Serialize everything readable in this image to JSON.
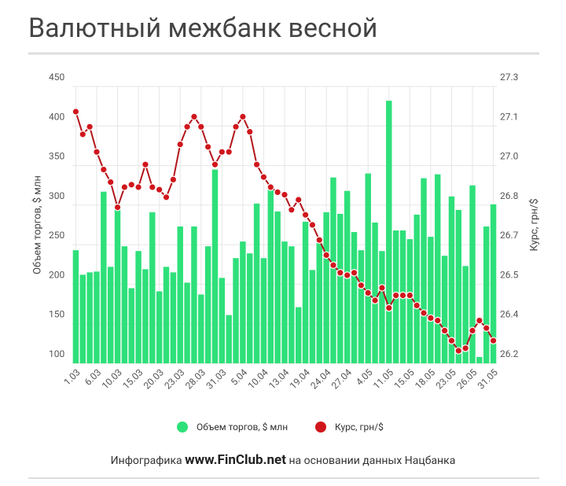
{
  "chart_data": {
    "type": "bar-line",
    "title": "Валютный межбанк весной",
    "y_label": "Объем торгов, $ млн",
    "y2_label": "Курс, грн/$",
    "footer": [
      "Инфографика",
      "www.FinClub.net",
      "на основании данных Нацбанка"
    ],
    "categories": [
      "1.03",
      null,
      null,
      "6.03",
      null,
      null,
      "10.03",
      null,
      null,
      "15.03",
      null,
      null,
      "20.03",
      null,
      null,
      "23.03",
      null,
      null,
      "28.03",
      null,
      null,
      "31.03",
      null,
      null,
      "5.04",
      null,
      null,
      "10.04",
      null,
      null,
      "13.04",
      null,
      null,
      "19.04",
      null,
      null,
      "24.04",
      null,
      null,
      "27.04",
      null,
      null,
      "4.05",
      null,
      null,
      "11.05",
      null,
      null,
      "15.05",
      null,
      null,
      "18.05",
      null,
      null,
      "23.05",
      null,
      null,
      "26.05",
      null,
      null,
      "31.05"
    ],
    "series": [
      {
        "name": "Объем торгов, $ млн",
        "kind": "bar",
        "color": "#2ee07a",
        "values": [
          243,
          212,
          215,
          216,
          317,
          222,
          301,
          248,
          195,
          242,
          219,
          291,
          191,
          222,
          215,
          273,
          202,
          273,
          187,
          248,
          345,
          208,
          161,
          233,
          254,
          239,
          302,
          233,
          322,
          292,
          254,
          248,
          171,
          279,
          218,
          252,
          291,
          335,
          289,
          318,
          266,
          243,
          340,
          278,
          242,
          432,
          268,
          268,
          257,
          288,
          334,
          260,
          339,
          236,
          311,
          294,
          223,
          325,
          108,
          273,
          301
        ]
      },
      {
        "name": "Курс, грн/$",
        "kind": "line",
        "axis": "y2",
        "color": "#d0161c",
        "values": [
          27.2,
          27.11,
          27.14,
          27.04,
          26.97,
          26.92,
          26.82,
          26.9,
          26.91,
          26.9,
          26.99,
          26.9,
          26.89,
          26.86,
          26.93,
          27.07,
          27.14,
          27.18,
          27.14,
          27.06,
          26.99,
          27.04,
          27.04,
          27.14,
          27.18,
          27.12,
          26.99,
          26.94,
          26.9,
          26.88,
          26.87,
          26.81,
          26.85,
          26.79,
          26.75,
          26.69,
          26.63,
          26.59,
          26.56,
          26.55,
          26.56,
          26.51,
          26.48,
          26.45,
          26.5,
          26.42,
          26.47,
          26.47,
          26.47,
          26.43,
          26.4,
          26.38,
          26.37,
          26.33,
          26.29,
          26.25,
          26.26,
          26.33,
          26.37,
          26.34,
          26.29
        ]
      }
    ],
    "ylim": [
      100,
      450
    ],
    "yticks": [
      100,
      150,
      200,
      250,
      300,
      350,
      400,
      450
    ],
    "y2lim": [
      26.2,
      27.3
    ],
    "y2ticks": [
      {
        "value": 26.2,
        "label": "26.2"
      },
      {
        "value": 26.3571,
        "label": "26.4"
      },
      {
        "value": 26.5143,
        "label": "26.5"
      },
      {
        "value": 26.6714,
        "label": "26.7"
      },
      {
        "value": 26.8286,
        "label": "26.8"
      },
      {
        "value": 26.9857,
        "label": "27.0"
      },
      {
        "value": 27.1429,
        "label": "27.1"
      },
      {
        "value": 27.3,
        "label": "27.3"
      }
    ],
    "grid": true
  }
}
